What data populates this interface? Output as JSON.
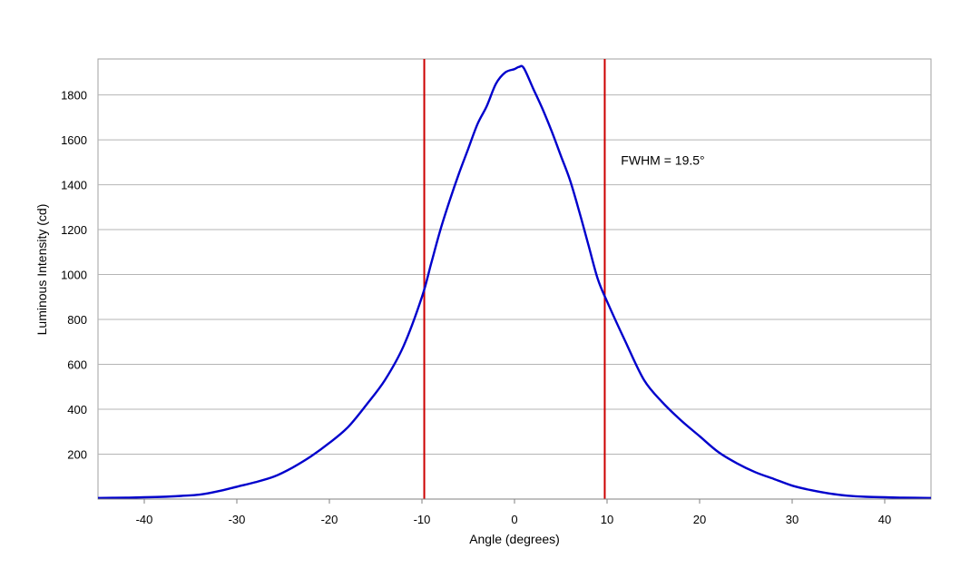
{
  "chart_data": {
    "type": "line",
    "title": "",
    "xlabel": "Angle (degrees)",
    "ylabel": "Luminous Intensity (cd)",
    "xlim": [
      -45,
      45
    ],
    "ylim": [
      0,
      1960
    ],
    "xticks": [
      -40,
      -30,
      -20,
      -10,
      0,
      10,
      20,
      30,
      40
    ],
    "yticks": [
      200,
      400,
      600,
      800,
      1000,
      1200,
      1400,
      1600,
      1800
    ],
    "grid": "horizontal",
    "legend": "none",
    "series": [
      {
        "color": "#0000cc",
        "x": [
          -45,
          -42,
          -40,
          -38,
          -36,
          -34,
          -32,
          -30,
          -28,
          -26,
          -24,
          -22,
          -20,
          -18,
          -16,
          -14,
          -12,
          -10,
          -9,
          -8,
          -7,
          -6,
          -5,
          -4,
          -3,
          -2,
          -1,
          0,
          0.5,
          1,
          2,
          3,
          4,
          5,
          6,
          7,
          8,
          9,
          10,
          12,
          14,
          16,
          18,
          20,
          22,
          24,
          26,
          28,
          30,
          32,
          34,
          36,
          38,
          40,
          42,
          45
        ],
        "y": [
          5,
          6,
          8,
          10,
          14,
          20,
          35,
          55,
          75,
          100,
          140,
          190,
          250,
          320,
          420,
          530,
          680,
          900,
          1050,
          1200,
          1330,
          1450,
          1560,
          1670,
          1750,
          1850,
          1900,
          1915,
          1925,
          1920,
          1830,
          1740,
          1640,
          1530,
          1420,
          1280,
          1130,
          980,
          880,
          700,
          530,
          430,
          350,
          280,
          210,
          160,
          120,
          90,
          60,
          40,
          25,
          15,
          10,
          8,
          6,
          5
        ]
      }
    ],
    "vlines": [
      {
        "x": -9.75,
        "color": "#cc0000"
      },
      {
        "x": 9.75,
        "color": "#cc0000"
      }
    ],
    "annotation": {
      "text": "FWHM = 19.5°",
      "x": 11.5,
      "y": 1490
    }
  }
}
